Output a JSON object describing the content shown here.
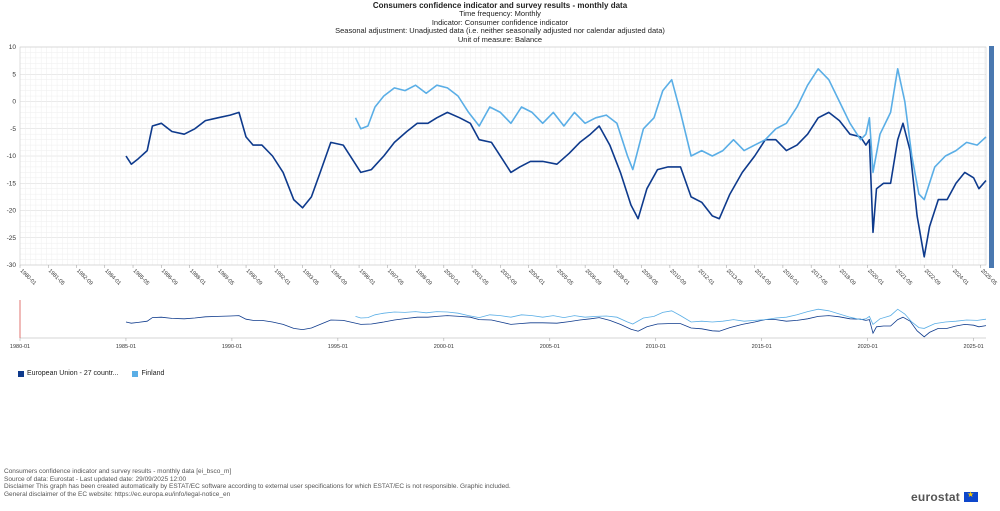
{
  "header": {
    "title": "Consumers confidence indicator and survey results - monthly data",
    "line1": "Time frequency:  Monthly",
    "line2": "Indicator:  Consumer confidence indicator",
    "line3": "Seasonal adjustment:  Unadjusted data (i.e. neither seasonally adjusted nor calendar adjusted data)",
    "line4": "Unit of measure:  Balance"
  },
  "legend": {
    "eu_label": "European Union - 27 countr...",
    "fi_label": "Finland"
  },
  "footer": {
    "line1": "Consumers confidence indicator and survey results - monthly data [ei_bsco_m]",
    "line2": "Source of data: Eurostat - Last updated date: 29/09/2025 12:00",
    "line3": "Disclaimer This graph has been created automatically by ESTAT/EC software according to external user specifications for which ESTAT/EC is not responsible. Graphic included.",
    "line4": "General disclaimer of the EC website: https://ec.europa.eu/info/legal-notice_en"
  },
  "logo": {
    "text": "eurostat"
  },
  "colors": {
    "eu": "#0e3a8c",
    "fi": "#5aaee6",
    "grid": "#e6e6e6"
  },
  "chart_data": {
    "type": "line",
    "title": "Consumers confidence indicator and survey results - monthly data",
    "ylim": [
      -30,
      10
    ],
    "yticks": [
      10,
      5,
      0,
      -5,
      -10,
      -15,
      -20,
      -25,
      -30
    ],
    "x_range": [
      "1980-01",
      "2025-08"
    ],
    "xticks_main": [
      "1980-01",
      "1981-05",
      "1982-09",
      "1984-01",
      "1985-05",
      "1986-09",
      "1988-01",
      "1989-05",
      "1990-09",
      "1992-01",
      "1993-05",
      "1994-09",
      "1996-01",
      "1997-05",
      "1998-09",
      "2000-01",
      "2001-05",
      "2002-09",
      "2004-01",
      "2005-05",
      "2006-09",
      "2008-01",
      "2009-05",
      "2010-09",
      "2012-01",
      "2013-05",
      "2014-09",
      "2016-01",
      "2017-05",
      "2018-09",
      "2020-01",
      "2021-05",
      "2022-09",
      "2024-01",
      "2025-05"
    ],
    "xticks_nav": [
      "1980-01",
      "1985-01",
      "1990-01",
      "1995-01",
      "2000-01",
      "2005-01",
      "2010-01",
      "2015-01",
      "2020-01",
      "2025-01"
    ],
    "series": [
      {
        "name": "European Union - 27 countr...",
        "points": [
          [
            "1985-01",
            -10
          ],
          [
            "1985-04",
            -11.5
          ],
          [
            "1985-08",
            -10.5
          ],
          [
            "1986-01",
            -9
          ],
          [
            "1986-04",
            -4.5
          ],
          [
            "1986-09",
            -4
          ],
          [
            "1987-03",
            -5.5
          ],
          [
            "1987-10",
            -6
          ],
          [
            "1988-04",
            -5
          ],
          [
            "1988-10",
            -3.5
          ],
          [
            "1989-05",
            -3
          ],
          [
            "1989-12",
            -2.5
          ],
          [
            "1990-05",
            -2
          ],
          [
            "1990-09",
            -6.5
          ],
          [
            "1991-01",
            -8
          ],
          [
            "1991-06",
            -8
          ],
          [
            "1991-12",
            -10
          ],
          [
            "1992-06",
            -13
          ],
          [
            "1992-12",
            -18
          ],
          [
            "1993-05",
            -19.5
          ],
          [
            "1993-10",
            -17.5
          ],
          [
            "1994-03",
            -13
          ],
          [
            "1994-09",
            -7.5
          ],
          [
            "1995-04",
            -8
          ],
          [
            "1995-09",
            -10.5
          ],
          [
            "1996-02",
            -13
          ],
          [
            "1996-08",
            -12.5
          ],
          [
            "1997-03",
            -10
          ],
          [
            "1997-09",
            -7.5
          ],
          [
            "1998-04",
            -5.5
          ],
          [
            "1998-10",
            -4
          ],
          [
            "1999-04",
            -4
          ],
          [
            "1999-09",
            -3
          ],
          [
            "2000-03",
            -2
          ],
          [
            "2000-10",
            -3
          ],
          [
            "2001-04",
            -4
          ],
          [
            "2001-09",
            -7
          ],
          [
            "2002-04",
            -7.5
          ],
          [
            "2002-10",
            -10.5
          ],
          [
            "2003-03",
            -13
          ],
          [
            "2003-08",
            -12
          ],
          [
            "2004-02",
            -11
          ],
          [
            "2004-09",
            -11
          ],
          [
            "2005-05",
            -11.5
          ],
          [
            "2005-12",
            -9.5
          ],
          [
            "2006-06",
            -7.5
          ],
          [
            "2006-12",
            -6
          ],
          [
            "2007-05",
            -4.5
          ],
          [
            "2007-11",
            -8
          ],
          [
            "2008-05",
            -13
          ],
          [
            "2008-11",
            -19
          ],
          [
            "2009-03",
            -21.5
          ],
          [
            "2009-08",
            -16
          ],
          [
            "2010-02",
            -12.5
          ],
          [
            "2010-08",
            -12
          ],
          [
            "2011-03",
            -12
          ],
          [
            "2011-09",
            -17.5
          ],
          [
            "2012-03",
            -18.5
          ],
          [
            "2012-09",
            -21
          ],
          [
            "2013-01",
            -21.5
          ],
          [
            "2013-07",
            -17
          ],
          [
            "2014-02",
            -13
          ],
          [
            "2014-09",
            -10
          ],
          [
            "2015-03",
            -7
          ],
          [
            "2015-09",
            -7
          ],
          [
            "2016-03",
            -9
          ],
          [
            "2016-09",
            -8
          ],
          [
            "2017-03",
            -6
          ],
          [
            "2017-09",
            -3
          ],
          [
            "2018-03",
            -2
          ],
          [
            "2018-09",
            -3.5
          ],
          [
            "2019-03",
            -6
          ],
          [
            "2019-09",
            -6.5
          ],
          [
            "2019-12",
            -8
          ],
          [
            "2020-02",
            -7
          ],
          [
            "2020-04",
            -24
          ],
          [
            "2020-06",
            -16
          ],
          [
            "2020-10",
            -15
          ],
          [
            "2021-02",
            -15
          ],
          [
            "2021-06",
            -7
          ],
          [
            "2021-09",
            -4
          ],
          [
            "2022-01",
            -9
          ],
          [
            "2022-05",
            -21
          ],
          [
            "2022-09",
            -28.5
          ],
          [
            "2022-12",
            -23
          ],
          [
            "2023-05",
            -18
          ],
          [
            "2023-10",
            -18
          ],
          [
            "2024-03",
            -15
          ],
          [
            "2024-08",
            -13
          ],
          [
            "2025-01",
            -14
          ],
          [
            "2025-04",
            -16
          ],
          [
            "2025-08",
            -14.5
          ]
        ]
      },
      {
        "name": "Finland",
        "points": [
          [
            "1995-11",
            -3
          ],
          [
            "1996-02",
            -5
          ],
          [
            "1996-06",
            -4.5
          ],
          [
            "1996-10",
            -1
          ],
          [
            "1997-03",
            1
          ],
          [
            "1997-09",
            2.5
          ],
          [
            "1998-03",
            2
          ],
          [
            "1998-09",
            3
          ],
          [
            "1999-03",
            1.5
          ],
          [
            "1999-09",
            3
          ],
          [
            "2000-03",
            2.5
          ],
          [
            "2000-09",
            1
          ],
          [
            "2001-03",
            -2
          ],
          [
            "2001-09",
            -4.5
          ],
          [
            "2002-03",
            -1
          ],
          [
            "2002-09",
            -2
          ],
          [
            "2003-03",
            -4
          ],
          [
            "2003-09",
            -1
          ],
          [
            "2004-03",
            -2
          ],
          [
            "2004-09",
            -4
          ],
          [
            "2005-03",
            -2
          ],
          [
            "2005-09",
            -4.5
          ],
          [
            "2006-03",
            -2
          ],
          [
            "2006-09",
            -4
          ],
          [
            "2007-03",
            -3
          ],
          [
            "2007-09",
            -2.5
          ],
          [
            "2008-03",
            -4
          ],
          [
            "2008-09",
            -10
          ],
          [
            "2008-12",
            -12.5
          ],
          [
            "2009-06",
            -5
          ],
          [
            "2009-12",
            -3
          ],
          [
            "2010-05",
            2
          ],
          [
            "2010-10",
            4
          ],
          [
            "2011-03",
            -2
          ],
          [
            "2011-09",
            -10
          ],
          [
            "2012-03",
            -9
          ],
          [
            "2012-09",
            -10
          ],
          [
            "2013-03",
            -9
          ],
          [
            "2013-09",
            -7
          ],
          [
            "2014-03",
            -9
          ],
          [
            "2014-09",
            -8
          ],
          [
            "2015-03",
            -7
          ],
          [
            "2015-09",
            -5
          ],
          [
            "2016-03",
            -4
          ],
          [
            "2016-09",
            -1
          ],
          [
            "2017-03",
            3
          ],
          [
            "2017-09",
            6
          ],
          [
            "2018-03",
            4
          ],
          [
            "2018-09",
            0
          ],
          [
            "2019-03",
            -4
          ],
          [
            "2019-09",
            -7
          ],
          [
            "2019-12",
            -6
          ],
          [
            "2020-02",
            -3
          ],
          [
            "2020-04",
            -13
          ],
          [
            "2020-08",
            -6
          ],
          [
            "2021-02",
            -2
          ],
          [
            "2021-06",
            6
          ],
          [
            "2021-10",
            0
          ],
          [
            "2022-02",
            -10
          ],
          [
            "2022-06",
            -17
          ],
          [
            "2022-09",
            -18
          ],
          [
            "2023-03",
            -12
          ],
          [
            "2023-09",
            -10
          ],
          [
            "2024-03",
            -9
          ],
          [
            "2024-09",
            -7.5
          ],
          [
            "2025-03",
            -8
          ],
          [
            "2025-08",
            -6.5
          ]
        ]
      }
    ]
  }
}
